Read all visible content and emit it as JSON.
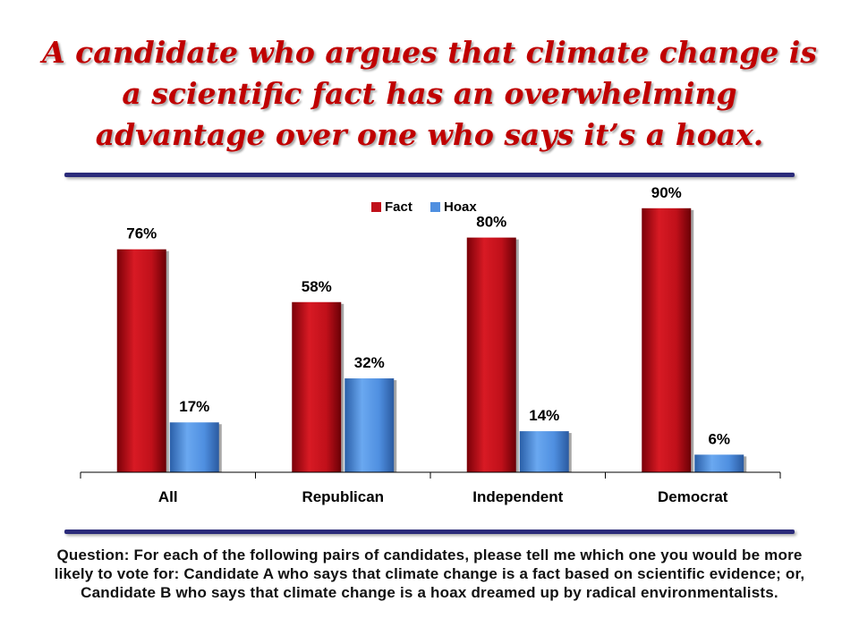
{
  "title": "A candidate who argues that climate change is a scientific fact has an overwhelming advantage over one who says it’s a hoax.",
  "question": "Question: For each of the following pairs of candidates, please tell me which one you would be more likely to vote for: Candidate A who says that climate change is a fact based on scientific evidence; or, Candidate B who says that climate change is a hoax dreamed up by radical environmentalists.",
  "colors": {
    "title": "#c00000",
    "rule": "#2b2b7a",
    "fact": "#c0101a",
    "hoax": "#4f8fe0"
  },
  "chart_data": {
    "type": "bar",
    "categories": [
      "All",
      "Republican",
      "Independent",
      "Democrat"
    ],
    "series": [
      {
        "name": "Fact",
        "values": [
          76,
          58,
          80,
          90
        ],
        "labels": [
          "76%",
          "58%",
          "80%",
          "90%"
        ],
        "color": "#c0101a"
      },
      {
        "name": "Hoax",
        "values": [
          17,
          32,
          14,
          6
        ],
        "labels": [
          "17%",
          "32%",
          "14%",
          "6%"
        ],
        "color": "#4f8fe0"
      }
    ],
    "ylim": [
      0,
      100
    ],
    "unit": "%",
    "grid": false,
    "legend": "top-center"
  }
}
